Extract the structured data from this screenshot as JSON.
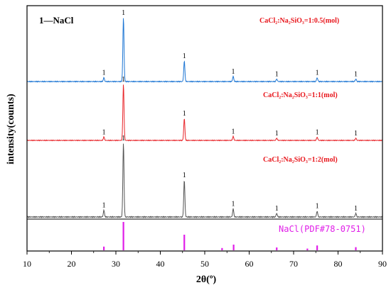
{
  "chart_data": {
    "type": "line",
    "xlabel": "2θ(º)",
    "ylabel": "intensity(counts)",
    "xlim": [
      10,
      90
    ],
    "xticks": [
      10,
      20,
      30,
      40,
      50,
      60,
      70,
      80,
      90
    ],
    "legend_key": "1—NaCl",
    "peak_marker_label": "1",
    "peaks": [
      27.3,
      31.7,
      45.4,
      56.4,
      66.2,
      75.3,
      84.0
    ],
    "series": [
      {
        "name": "CaCl₂:Na₂SiO₃=1:0.5(mol)",
        "color": "#1f77d4",
        "label_color": "#e8151b",
        "intensities": [
          0.06,
          1.0,
          0.32,
          0.08,
          0.04,
          0.06,
          0.04
        ]
      },
      {
        "name": "CaCl₂:Na₂SiO₃=1:1(mol)",
        "color": "#e8262b",
        "label_color": "#e8151b",
        "intensities": [
          0.06,
          1.0,
          0.39,
          0.07,
          0.04,
          0.06,
          0.04
        ]
      },
      {
        "name": "CaCl₂:Na₂SiO₃=1:2(mol)",
        "color": "#555555",
        "label_color": "#e8151b",
        "intensities": [
          0.09,
          1.0,
          0.5,
          0.11,
          0.05,
          0.08,
          0.05
        ]
      }
    ],
    "reference": {
      "name": "NaCl(PDF#78-0751)",
      "color": "#e01ee8",
      "positions": [
        27.3,
        31.7,
        45.4,
        53.9,
        56.5,
        66.2,
        73.1,
        75.3,
        84.0
      ],
      "intensities": [
        0.13,
        1.0,
        0.55,
        0.08,
        0.2,
        0.1,
        0.06,
        0.17,
        0.11
      ]
    }
  }
}
